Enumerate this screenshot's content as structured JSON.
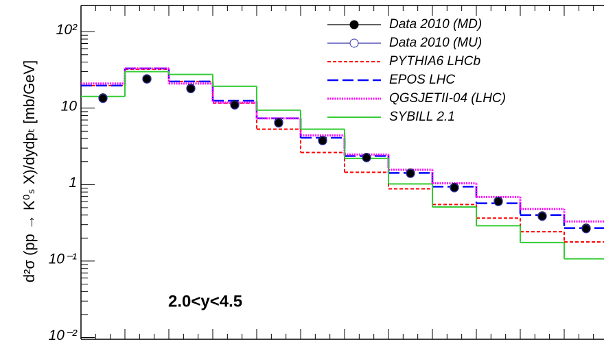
{
  "chart_data": {
    "type": "step",
    "ylabel": "d²σ (pp → K⁰ₛ X)/dydpₜ [mb/GeV]",
    "annotation": "2.0<y<4.5",
    "categories": [
      null,
      null,
      null,
      null,
      null,
      null,
      null,
      null,
      null,
      null,
      null,
      null
    ],
    "log_y": true,
    "ylim": [
      0.0095,
      220
    ],
    "yticks": [
      {
        "value": 100,
        "label": "10²"
      },
      10,
      1,
      {
        "value": 0.1,
        "label": "10⁻¹"
      },
      {
        "value": 0.01,
        "label": "10⁻²"
      }
    ],
    "legend": "top-right",
    "series": [
      {
        "name": "Data 2010 (MD)",
        "color": "#000000",
        "kind": "points",
        "filled": true,
        "values": [
          13.6,
          24.2,
          18.2,
          11.1,
          6.5,
          3.8,
          2.27,
          1.42,
          0.92,
          0.61,
          0.39,
          0.27
        ]
      },
      {
        "name": "Data 2010 (MU)",
        "color": "#3333aa",
        "kind": "points",
        "filled": false,
        "values": [
          13.4,
          24.0,
          18.0,
          11.0,
          6.4,
          3.75,
          2.25,
          1.4,
          0.91,
          0.6,
          0.385,
          0.265
        ]
      },
      {
        "name": "PYTHIA6 LHCb",
        "color": "#ff0000",
        "kind": "step",
        "dash": "short",
        "values": [
          19.7,
          32.3,
          22.3,
          11.6,
          5.3,
          2.63,
          1.45,
          0.88,
          0.55,
          0.365,
          0.242,
          0.178
        ]
      },
      {
        "name": "EPOS LHC",
        "color": "#0000ff",
        "kind": "step",
        "dash": "long",
        "values": [
          19.7,
          33,
          22.3,
          12.5,
          7.35,
          4.1,
          2.37,
          1.42,
          0.94,
          0.57,
          0.4,
          0.27
        ]
      },
      {
        "name": "QGSJETII-04 (LHC)",
        "color": "#ff00ff",
        "kind": "step",
        "dash": "dot",
        "values": [
          21,
          33,
          21,
          11.8,
          7.35,
          4.4,
          2.47,
          1.57,
          1.04,
          0.69,
          0.48,
          0.33
        ]
      },
      {
        "name": "SYBILL 2.1",
        "color": "#33cc33",
        "kind": "step",
        "dash": "solid",
        "values": [
          14.2,
          30,
          27.6,
          19.3,
          9.4,
          5.3,
          2.2,
          1.02,
          0.51,
          0.29,
          0.175,
          0.107
        ]
      }
    ]
  }
}
